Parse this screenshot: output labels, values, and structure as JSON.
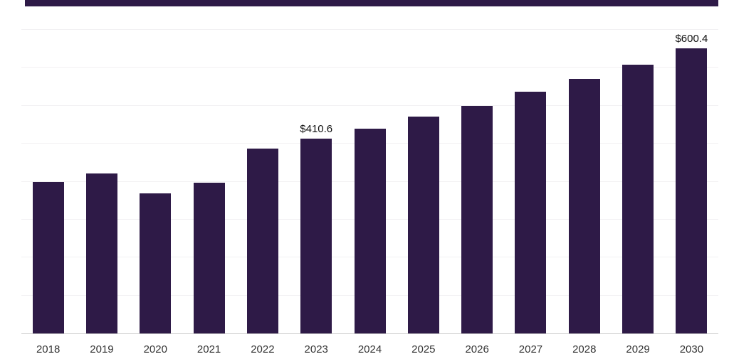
{
  "chart_data": {
    "type": "bar",
    "title": "",
    "xlabel": "",
    "ylabel": "",
    "categories": [
      "2018",
      "2019",
      "2020",
      "2021",
      "2022",
      "2023",
      "2024",
      "2025",
      "2026",
      "2027",
      "2028",
      "2029",
      "2030"
    ],
    "values": [
      320,
      337,
      295,
      318,
      390,
      410.6,
      431,
      457,
      479,
      509,
      536,
      567,
      600.4
    ],
    "data_labels": [
      null,
      null,
      null,
      null,
      null,
      "$410.6",
      null,
      null,
      null,
      null,
      null,
      null,
      "$600.4"
    ],
    "bar_color": "#2e1a47",
    "accent_color": "#2e1a47",
    "ylim": [
      0,
      640
    ],
    "grid": "horizontal-faint",
    "grid_step": 80,
    "legend": "none"
  }
}
